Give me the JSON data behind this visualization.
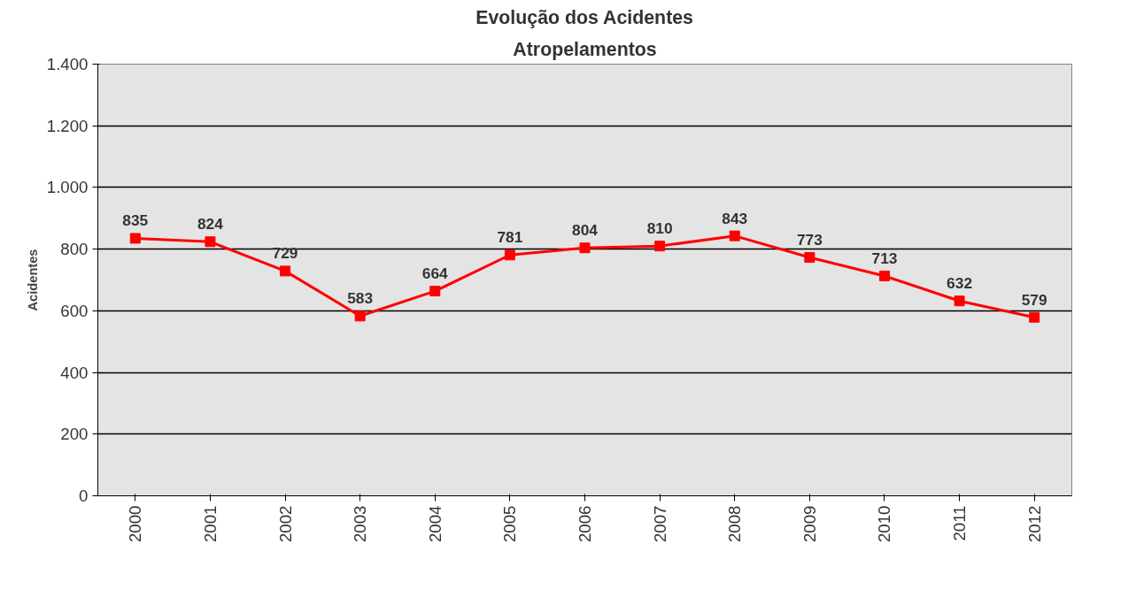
{
  "chart_data": {
    "type": "line",
    "title": "Evolução dos Acidentes",
    "subtitle": "Atropelamentos",
    "ylabel": "Acidentes",
    "categories": [
      "2000",
      "2001",
      "2002",
      "2003",
      "2004",
      "2005",
      "2006",
      "2007",
      "2008",
      "2009",
      "2010",
      "2011",
      "2012"
    ],
    "series": [
      {
        "color": "#ff0000",
        "values": [
          835,
          824,
          729,
          583,
          664,
          781,
          804,
          810,
          843,
          773,
          713,
          632,
          579
        ]
      }
    ],
    "ylim": [
      0,
      1400
    ],
    "yticks": [
      {
        "value": 0,
        "label": "0"
      },
      {
        "value": 200,
        "label": "200"
      },
      {
        "value": 400,
        "label": "400"
      },
      {
        "value": 600,
        "label": "600"
      },
      {
        "value": 800,
        "label": "800"
      },
      {
        "value": 1000,
        "label": "1.000"
      },
      {
        "value": 1200,
        "label": "1.200"
      },
      {
        "value": 1400,
        "label": "1.400"
      }
    ],
    "grid": "y",
    "marker": "square",
    "line_style": "solid",
    "data_labels": true
  }
}
